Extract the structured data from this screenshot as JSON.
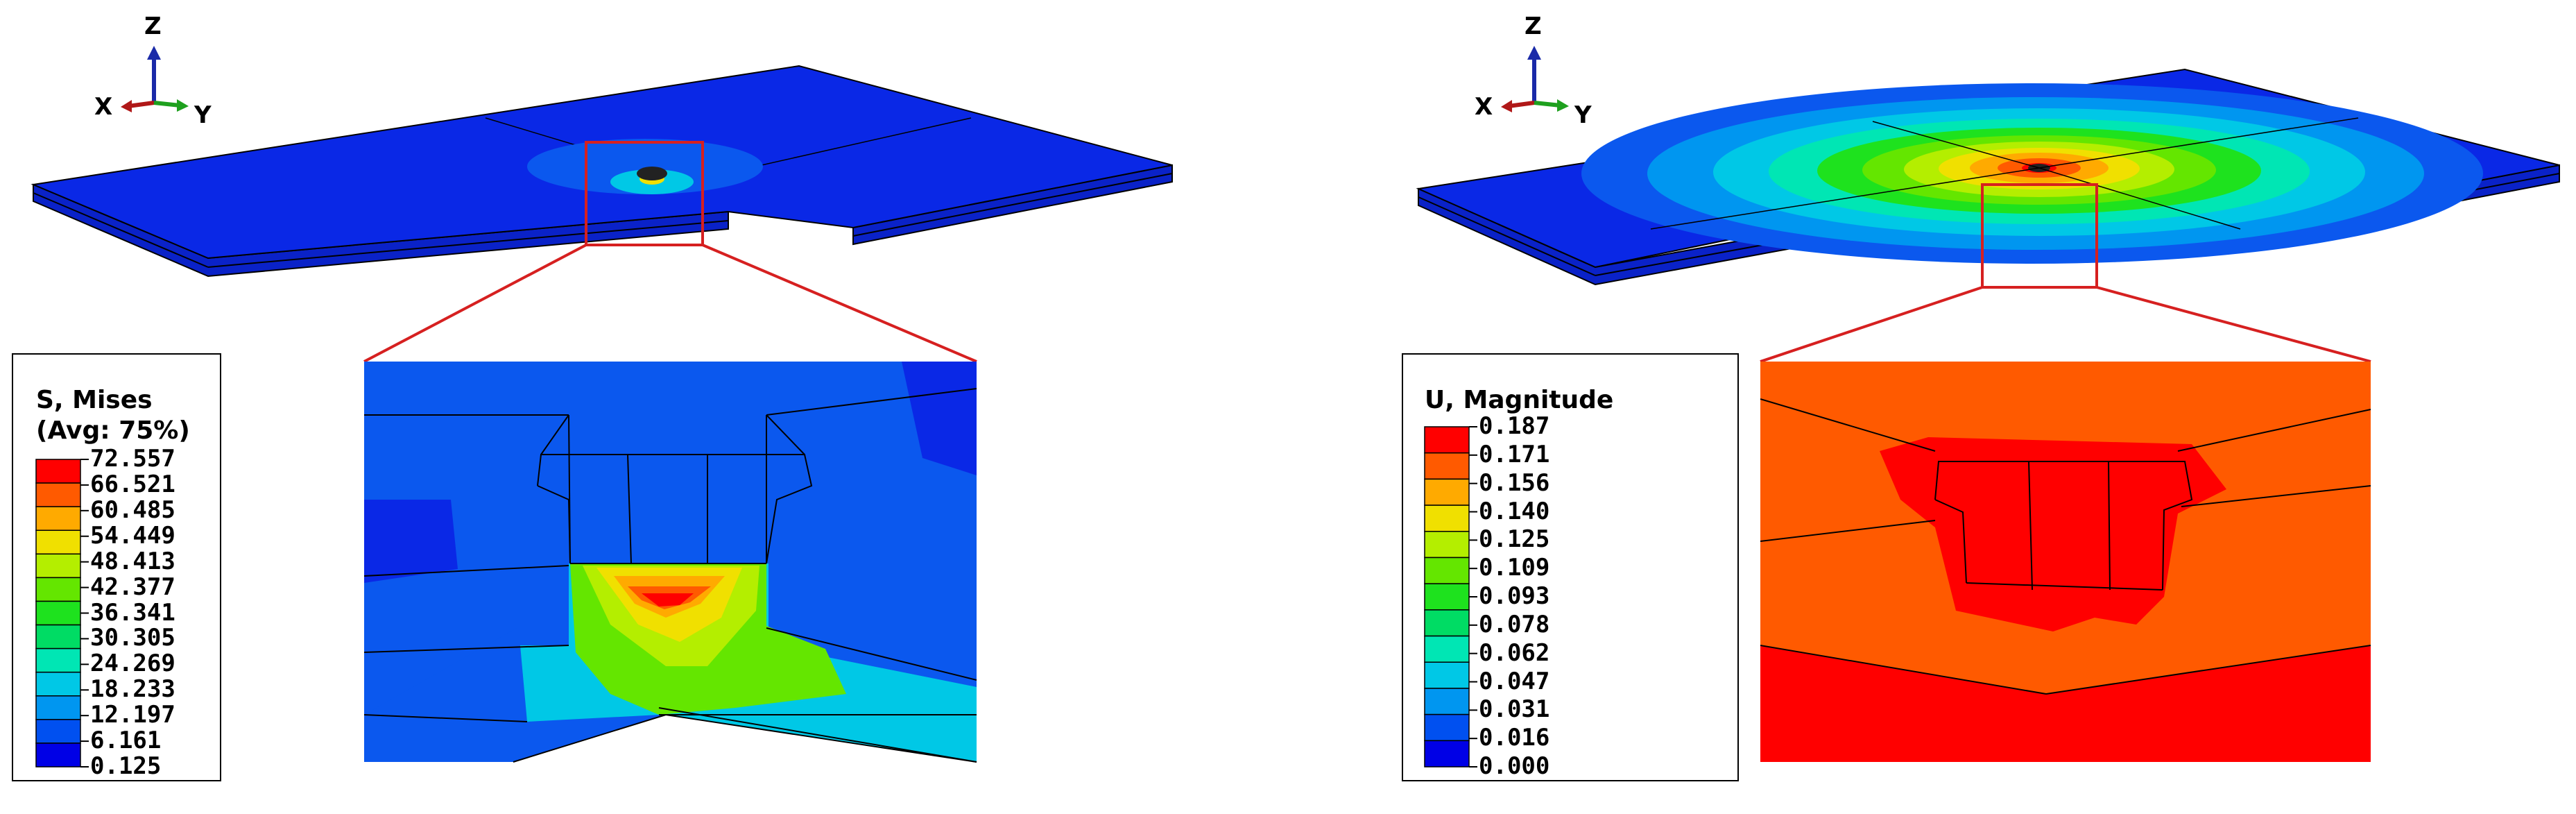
{
  "left_panel": {
    "triad": {
      "z": "Z",
      "x": "X",
      "y": "Y"
    },
    "legend": {
      "title_line1": "S, Mises",
      "title_line2": "(Avg: 75%)",
      "values": [
        "72.557",
        "66.521",
        "60.485",
        "54.449",
        "48.413",
        "42.377",
        "36.341",
        "30.305",
        "24.269",
        "18.233",
        "12.197",
        "6.161",
        "0.125"
      ],
      "colors": [
        "#ff0000",
        "#ff5a00",
        "#ffaa00",
        "#f0e000",
        "#b4ee00",
        "#64e600",
        "#1ee21e",
        "#00dc64",
        "#00e6b4",
        "#00c8e6",
        "#0096f0",
        "#0050f0",
        "#0000e6"
      ]
    }
  },
  "right_panel": {
    "triad": {
      "z": "Z",
      "x": "X",
      "y": "Y"
    },
    "legend": {
      "title_line1": "U, Magnitude",
      "values": [
        "0.187",
        "0.171",
        "0.156",
        "0.140",
        "0.125",
        "0.109",
        "0.093",
        "0.078",
        "0.062",
        "0.047",
        "0.031",
        "0.016",
        "0.000"
      ],
      "colors": [
        "#ff0000",
        "#ff5a00",
        "#ffaa00",
        "#f0e000",
        "#b4ee00",
        "#64e600",
        "#1ee21e",
        "#00dc64",
        "#00e6b4",
        "#00c8e6",
        "#0096f0",
        "#0050f0",
        "#0000e6"
      ]
    }
  },
  "accent": {
    "zoom_box": "#d62020",
    "base_blue": "#0a28e6",
    "mid_blue": "#0b58ee"
  }
}
